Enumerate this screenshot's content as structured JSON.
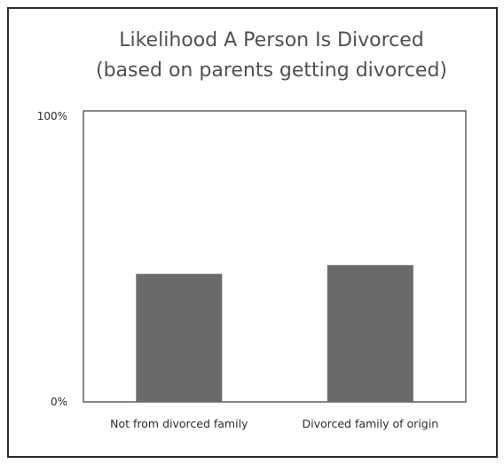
{
  "chart_data": {
    "type": "bar",
    "title": "Likelihood A Person Is Divorced",
    "subtitle": "(based on parents getting divorced)",
    "categories": [
      "Not from divorced family",
      "Divorced family of origin"
    ],
    "values": [
      44,
      47
    ],
    "ylim": [
      0,
      100
    ],
    "yticks": [
      "0%",
      "100%"
    ],
    "grid": false,
    "bar_color": "#6b6b6b",
    "axis_color": "#3a3a3a"
  }
}
